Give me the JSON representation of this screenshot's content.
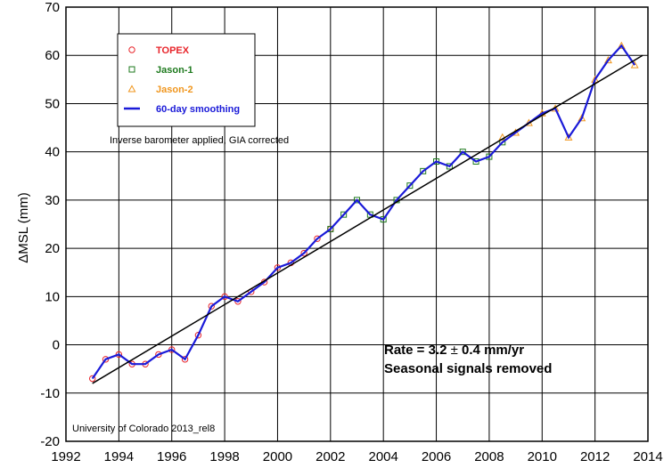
{
  "chart_data": {
    "type": "scatter",
    "title": "",
    "xlabel": "",
    "ylabel": "ΔMSL (mm)",
    "xlim": [
      1992,
      2014
    ],
    "ylim": [
      -20,
      70
    ],
    "x_ticks": [
      "1992",
      "1994",
      "1996",
      "1998",
      "2000",
      "2002",
      "2004",
      "2006",
      "2008",
      "2010",
      "2012",
      "2014"
    ],
    "y_ticks": [
      "-20",
      "-10",
      "0",
      "10",
      "20",
      "30",
      "40",
      "50",
      "60",
      "70"
    ],
    "grid": true,
    "legend_placement": "top-left",
    "series": [
      {
        "name": "TOPEX",
        "marker": "circle",
        "color": "#e8252b",
        "x": [
          1993.0,
          1993.5,
          1994.0,
          1994.5,
          1995.0,
          1995.5,
          1996.0,
          1996.5,
          1997.0,
          1997.5,
          1998.0,
          1998.5,
          1999.0,
          1999.5,
          2000.0,
          2000.5,
          2001.0,
          2001.5,
          2002.0
        ],
        "y": [
          -7,
          -3,
          -2,
          -4,
          -4,
          -2,
          -1,
          -3,
          2,
          8,
          10,
          9,
          11,
          13,
          16,
          17,
          19,
          22,
          24
        ]
      },
      {
        "name": "Jason-1",
        "marker": "square",
        "color": "#1e7a1e",
        "x": [
          2002.0,
          2002.5,
          2003.0,
          2003.5,
          2004.0,
          2004.5,
          2005.0,
          2005.5,
          2006.0,
          2006.5,
          2007.0,
          2007.5,
          2008.0,
          2008.5
        ],
        "y": [
          24,
          27,
          30,
          27,
          26,
          30,
          33,
          36,
          38,
          37,
          40,
          38,
          39,
          42
        ]
      },
      {
        "name": "Jason-2",
        "marker": "triangle",
        "color": "#f0961e",
        "x": [
          2008.5,
          2009.0,
          2009.5,
          2010.0,
          2010.5,
          2011.0,
          2011.5,
          2012.0,
          2012.5,
          2013.0,
          2013.5
        ],
        "y": [
          43,
          44,
          46,
          48,
          49,
          43,
          47,
          55,
          59,
          62,
          58
        ]
      },
      {
        "name": "60-day smoothing",
        "marker": "line",
        "color": "#1a1ad8",
        "x": [
          1993.0,
          1993.5,
          1994.0,
          1994.5,
          1995.0,
          1995.5,
          1996.0,
          1996.5,
          1997.0,
          1997.5,
          1998.0,
          1998.5,
          1999.0,
          1999.5,
          2000.0,
          2000.5,
          2001.0,
          2001.5,
          2002.0,
          2002.5,
          2003.0,
          2003.5,
          2004.0,
          2004.5,
          2005.0,
          2005.5,
          2006.0,
          2006.5,
          2007.0,
          2007.5,
          2008.0,
          2008.5,
          2009.0,
          2009.5,
          2010.0,
          2010.5,
          2011.0,
          2011.5,
          2012.0,
          2012.5,
          2013.0,
          2013.5
        ],
        "y": [
          -7,
          -3,
          -2,
          -4,
          -4,
          -2,
          -1,
          -3,
          2,
          8,
          10,
          9,
          11,
          13,
          16,
          17,
          19,
          22,
          24,
          27,
          30,
          27,
          26,
          30,
          33,
          36,
          38,
          37,
          40,
          38,
          39,
          42,
          44,
          46,
          48,
          49,
          43,
          47,
          55,
          59,
          62,
          58
        ]
      }
    ],
    "trend": {
      "rate": 3.2,
      "x": [
        1993.0,
        2013.8
      ],
      "y": [
        -8,
        60
      ]
    },
    "annotations": {
      "correction": "Inverse barometer applied, GIA corrected",
      "rate_prefix": "Rate = 3.2",
      "rate_pm": "±",
      "rate_suffix": "0.4 mm/yr",
      "seasonal": "Seasonal signals removed",
      "source": "University of Colorado 2013_rel8"
    }
  }
}
